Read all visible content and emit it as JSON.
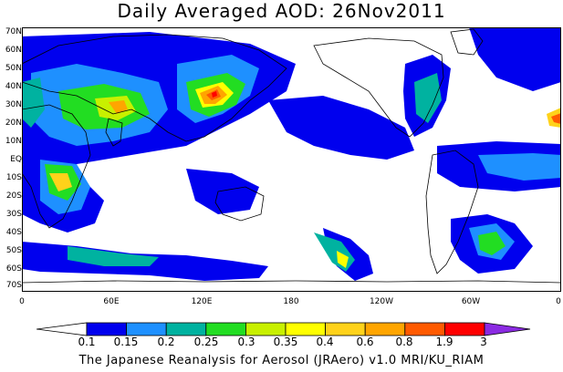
{
  "title": "Daily Averaged AOD: 26Nov2011",
  "credit": "The Japanese Reanalysis for Aerosol (JRAero) v1.0 MRI/KU_RIAM",
  "lat_labels": [
    "70N",
    "60N",
    "50N",
    "40N",
    "30N",
    "20N",
    "10N",
    "EQ",
    "10S",
    "20S",
    "30S",
    "40S",
    "50S",
    "60S",
    "70S"
  ],
  "lon_labels": [
    "0",
    "60E",
    "120E",
    "180",
    "120W",
    "60W",
    "0"
  ],
  "colorbar": {
    "labels": [
      "0.1",
      "0.15",
      "0.2",
      "0.25",
      "0.3",
      "0.35",
      "0.4",
      "0.6",
      "0.8",
      "1.9",
      "3"
    ],
    "colors": [
      "#ffffff",
      "#0000ee",
      "#1e90ff",
      "#00b2a0",
      "#22dd22",
      "#c8f000",
      "#ffff00",
      "#ffd21a",
      "#ffa500",
      "#ff5a00",
      "#ff0000",
      "#8b2be2"
    ]
  },
  "legend_colors": {
    "very_low": "#0000ee",
    "low": "#1e90ff",
    "teal": "#00b2a0",
    "green": "#22dd22",
    "lime": "#c8f000",
    "yellow": "#ffff00",
    "gold": "#ffd21a",
    "orange": "#ffa500",
    "deep_orange": "#ff5a00",
    "red": "#ff0000",
    "purple": "#8b2be2"
  }
}
